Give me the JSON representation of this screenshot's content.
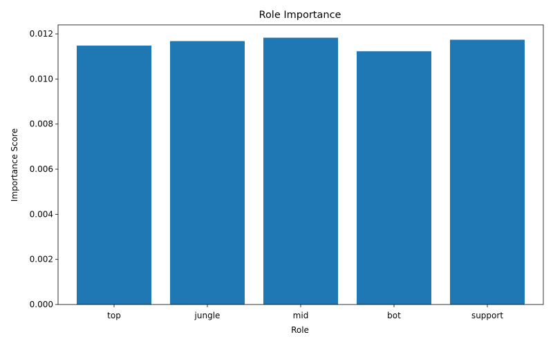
{
  "chart_data": {
    "type": "bar",
    "title": "Role Importance",
    "xlabel": "Role",
    "ylabel": "Importance Score",
    "categories": [
      "top",
      "jungle",
      "mid",
      "bot",
      "support"
    ],
    "values": [
      0.01148,
      0.01168,
      0.01183,
      0.01123,
      0.01174
    ],
    "ylim": [
      0,
      0.0124
    ],
    "yticks": [
      "0.000",
      "0.002",
      "0.004",
      "0.006",
      "0.008",
      "0.010",
      "0.012"
    ],
    "bar_color": "#1f77b4",
    "grid": false,
    "legend": "none"
  }
}
